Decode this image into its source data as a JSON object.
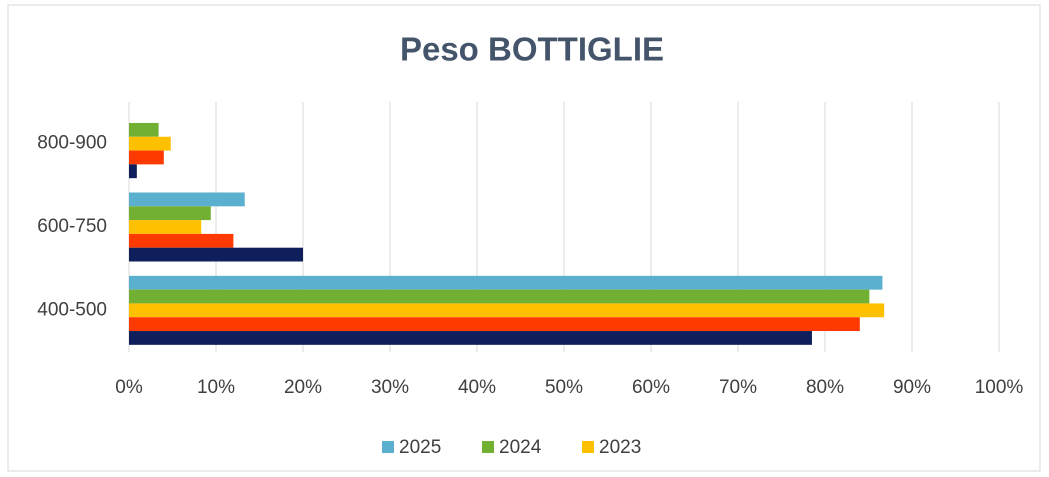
{
  "chart_data": {
    "type": "hbar",
    "title": "Peso BOTTIGLIE",
    "categories": [
      "400-500",
      "600-750",
      "800-900"
    ],
    "series": [
      {
        "name": "2025",
        "color": "#5bafcf",
        "values": [
          86.6,
          13.3,
          0
        ]
      },
      {
        "name": "2024",
        "color": "#72b034",
        "values": [
          85.1,
          9.4,
          3.4
        ]
      },
      {
        "name": "2023",
        "color": "#ffc000",
        "values": [
          86.8,
          8.3,
          4.8
        ]
      },
      {
        "name": null,
        "color": "#ff3a00",
        "values": [
          84.0,
          12.0,
          4.0
        ]
      },
      {
        "name": null,
        "color": "#0e1f5b",
        "values": [
          78.5,
          20.0,
          0.9
        ]
      }
    ],
    "xlim": [
      0,
      100
    ],
    "xticks": [
      {
        "value": 0,
        "label": "0%"
      },
      {
        "value": 10,
        "label": "10%"
      },
      {
        "value": 20,
        "label": "20%"
      },
      {
        "value": 30,
        "label": "30%"
      },
      {
        "value": 40,
        "label": "40%"
      },
      {
        "value": 50,
        "label": "50%"
      },
      {
        "value": 60,
        "label": "60%"
      },
      {
        "value": 70,
        "label": "70%"
      },
      {
        "value": 80,
        "label": "80%"
      },
      {
        "value": 90,
        "label": "90%"
      },
      {
        "value": 100,
        "label": "100%"
      }
    ],
    "grid": true,
    "legend": "bottom"
  }
}
